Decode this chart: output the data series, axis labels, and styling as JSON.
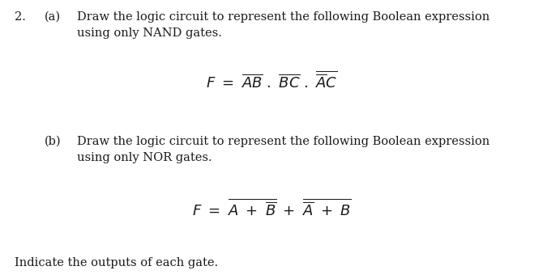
{
  "background_color": "#ffffff",
  "fig_width": 6.7,
  "fig_height": 3.45,
  "dpi": 100,
  "number_text": "2.",
  "part_a_label": "(a)",
  "part_a_line1": "Draw the logic circuit to represent the following Boolean expression",
  "part_a_line2": "using only NAND gates.",
  "part_b_label": "(b)",
  "part_b_line1": "Draw the logic circuit to represent the following Boolean expression",
  "part_b_line2": "using only NOR gates.",
  "footer": "Indicate the outputs of each gate.",
  "font_size_main": 10.5,
  "font_size_math": 13,
  "text_color": "#1a1a1a"
}
